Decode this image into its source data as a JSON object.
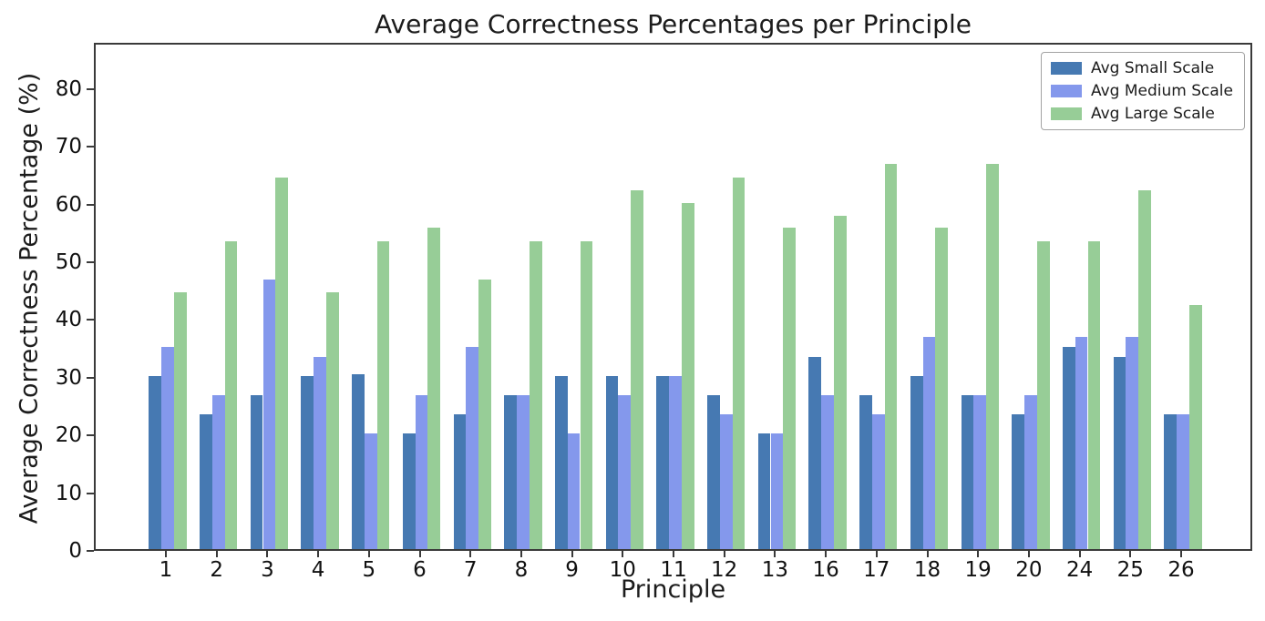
{
  "chart_data": {
    "type": "bar",
    "title": "Average Correctness Percentages per Principle",
    "xlabel": "Principle",
    "ylabel": "Average Correctness Percentage (%)",
    "categories": [
      "1",
      "2",
      "3",
      "4",
      "5",
      "6",
      "7",
      "8",
      "9",
      "10",
      "11",
      "12",
      "13",
      "16",
      "17",
      "18",
      "19",
      "20",
      "24",
      "25",
      "26"
    ],
    "series": [
      {
        "name": "Avg Small Scale",
        "color": "#4679b2",
        "values": [
          30,
          23.3,
          26.7,
          30,
          30.3,
          20,
          23.3,
          26.7,
          30,
          30,
          30,
          26.7,
          20,
          33.3,
          26.7,
          30,
          26.7,
          23.3,
          35,
          33.3,
          23.3
        ]
      },
      {
        "name": "Avg Medium Scale",
        "color": "#8498ec",
        "values": [
          35,
          26.7,
          46.7,
          33.3,
          20,
          26.7,
          35,
          26.7,
          20,
          26.7,
          30,
          23.3,
          20,
          26.7,
          23.3,
          36.7,
          26.7,
          26.7,
          36.7,
          36.7,
          23.3
        ]
      },
      {
        "name": "Avg Large Scale",
        "color": "#97cd97",
        "values": [
          44.4,
          53.3,
          64.4,
          44.4,
          53.3,
          55.6,
          46.7,
          53.3,
          53.3,
          62.2,
          60,
          64.4,
          55.6,
          57.8,
          66.7,
          55.6,
          66.7,
          53.3,
          53.3,
          62.2,
          42.2
        ]
      }
    ],
    "ylim": [
      0,
      88
    ],
    "yticks": [
      0,
      10,
      20,
      30,
      40,
      50,
      60,
      70,
      80
    ],
    "grid": false,
    "legend_position": "upper right"
  }
}
